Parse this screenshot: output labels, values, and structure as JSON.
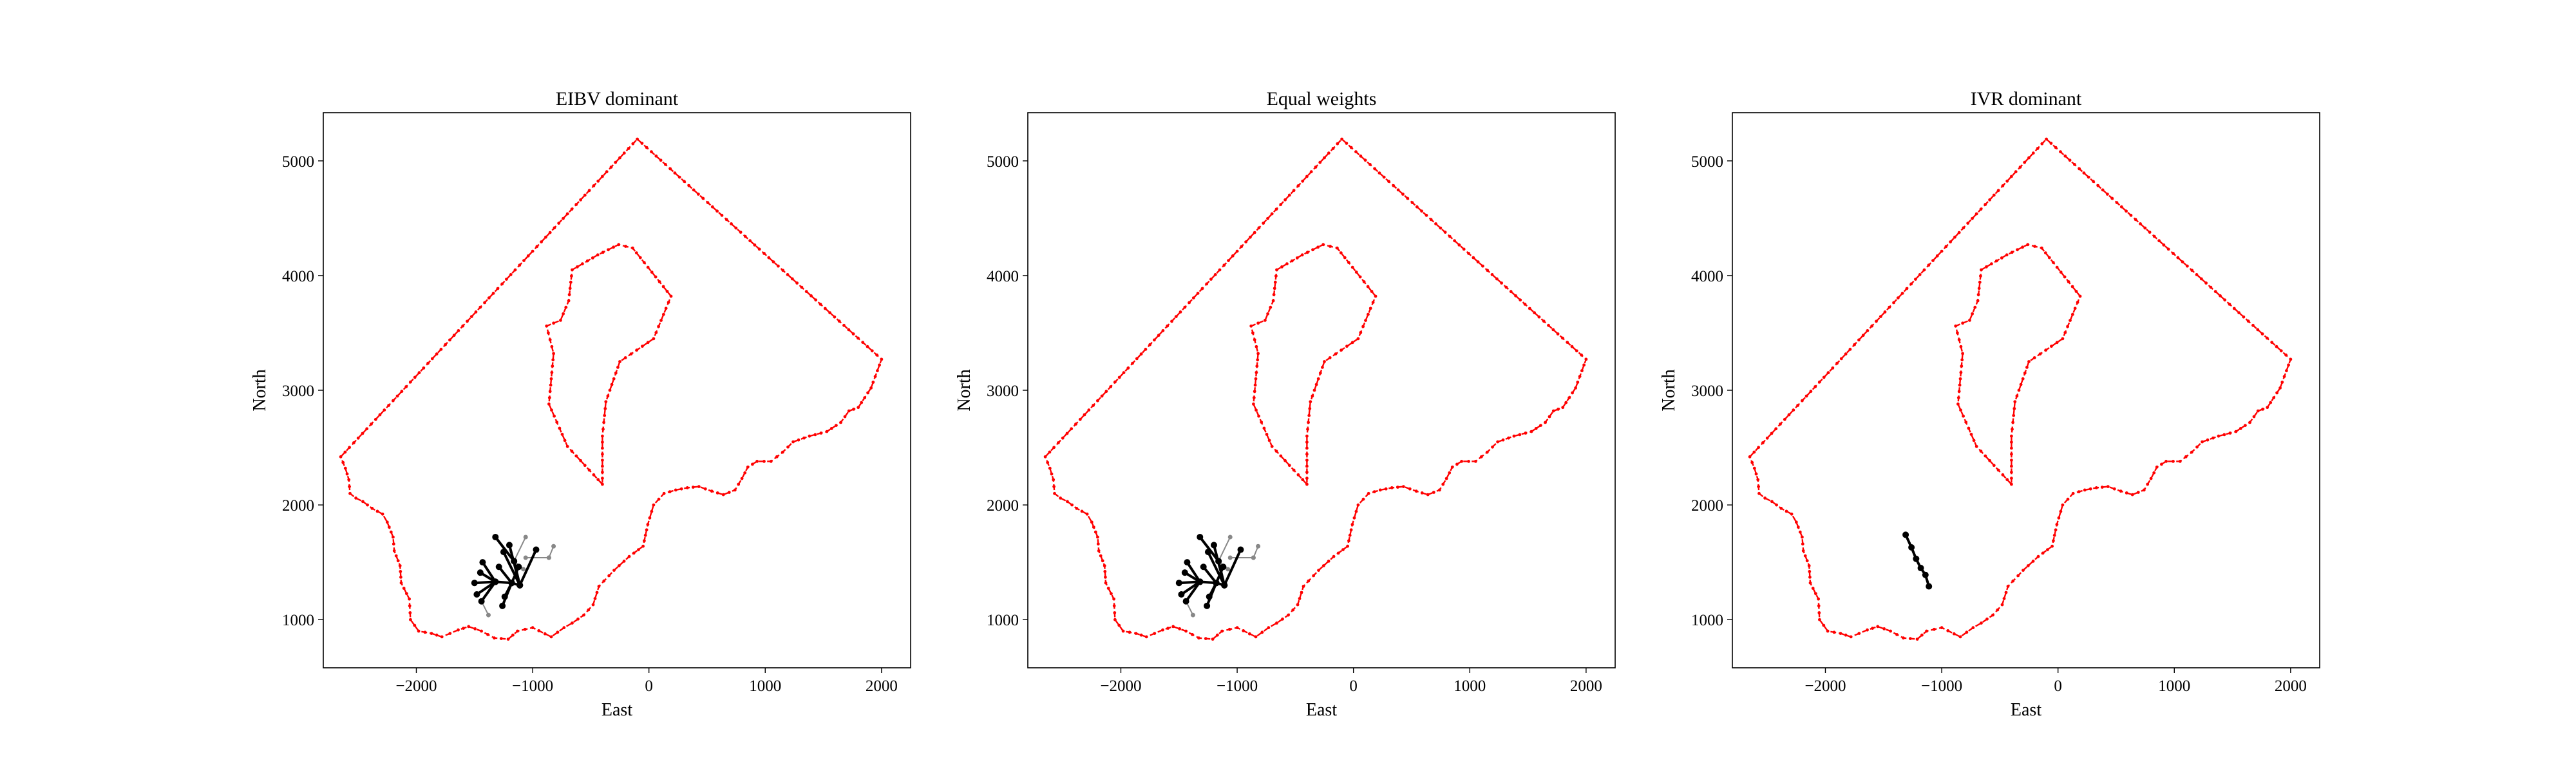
{
  "figure": {
    "background": "#ffffff",
    "boundary_color": "#ff0000",
    "path_color": "#000000",
    "candidate_color": "#888888"
  },
  "chart_data": [
    {
      "type": "line",
      "title": "EIBV dominant",
      "xlabel": "East",
      "ylabel": "North",
      "xlim": [
        -2800,
        2250
      ],
      "ylim": [
        580,
        5420
      ],
      "xticks": [
        -2000,
        -1000,
        0,
        1000,
        2000
      ],
      "xtick_labels": [
        "−2000",
        "−1000",
        "0",
        "1000",
        "2000"
      ],
      "yticks": [
        1000,
        2000,
        3000,
        4000,
        5000
      ],
      "ytick_labels": [
        "1000",
        "2000",
        "3000",
        "4000",
        "5000"
      ],
      "grid": false,
      "path_key": "tree"
    },
    {
      "type": "line",
      "title": "Equal weights",
      "xlabel": "East",
      "ylabel": "North",
      "xlim": [
        -2800,
        2250
      ],
      "ylim": [
        580,
        5420
      ],
      "xticks": [
        -2000,
        -1000,
        0,
        1000,
        2000
      ],
      "xtick_labels": [
        "−2000",
        "−1000",
        "0",
        "1000",
        "2000"
      ],
      "yticks": [
        1000,
        2000,
        3000,
        4000,
        5000
      ],
      "ytick_labels": [
        "1000",
        "2000",
        "3000",
        "4000",
        "5000"
      ],
      "grid": false,
      "path_key": "tree"
    },
    {
      "type": "line",
      "title": "IVR dominant",
      "xlabel": "East",
      "ylabel": "North",
      "xlim": [
        -2800,
        2250
      ],
      "ylim": [
        580,
        5420
      ],
      "xticks": [
        -2000,
        -1000,
        0,
        1000,
        2000
      ],
      "xtick_labels": [
        "−2000",
        "−1000",
        "0",
        "1000",
        "2000"
      ],
      "yticks": [
        1000,
        2000,
        3000,
        4000,
        5000
      ],
      "ytick_labels": [
        "1000",
        "2000",
        "3000",
        "4000",
        "5000"
      ],
      "grid": false,
      "path_key": "line"
    }
  ],
  "shared_geometry": {
    "outer_boundary": [
      [
        -2650,
        2420
      ],
      [
        -100,
        5190
      ],
      [
        2000,
        3270
      ],
      [
        1910,
        3020
      ],
      [
        1800,
        2850
      ],
      [
        1720,
        2820
      ],
      [
        1650,
        2720
      ],
      [
        1530,
        2640
      ],
      [
        1380,
        2600
      ],
      [
        1240,
        2550
      ],
      [
        1150,
        2460
      ],
      [
        1050,
        2380
      ],
      [
        930,
        2380
      ],
      [
        850,
        2330
      ],
      [
        800,
        2230
      ],
      [
        740,
        2130
      ],
      [
        640,
        2090
      ],
      [
        540,
        2120
      ],
      [
        430,
        2160
      ],
      [
        330,
        2150
      ],
      [
        230,
        2130
      ],
      [
        130,
        2100
      ],
      [
        40,
        2000
      ],
      [
        -10,
        1830
      ],
      [
        -50,
        1640
      ],
      [
        -170,
        1550
      ],
      [
        -300,
        1430
      ],
      [
        -430,
        1290
      ],
      [
        -480,
        1130
      ],
      [
        -560,
        1040
      ],
      [
        -660,
        970
      ],
      [
        -730,
        930
      ],
      [
        -840,
        850
      ],
      [
        -1000,
        930
      ],
      [
        -1130,
        900
      ],
      [
        -1210,
        830
      ],
      [
        -1330,
        840
      ],
      [
        -1440,
        900
      ],
      [
        -1550,
        940
      ],
      [
        -1640,
        910
      ],
      [
        -1710,
        880
      ],
      [
        -1780,
        850
      ],
      [
        -1870,
        880
      ],
      [
        -1980,
        900
      ],
      [
        -2050,
        1000
      ],
      [
        -2060,
        1180
      ],
      [
        -2130,
        1320
      ],
      [
        -2140,
        1470
      ],
      [
        -2190,
        1600
      ],
      [
        -2200,
        1720
      ],
      [
        -2250,
        1850
      ],
      [
        -2290,
        1920
      ],
      [
        -2380,
        1970
      ],
      [
        -2460,
        2030
      ],
      [
        -2520,
        2060
      ],
      [
        -2570,
        2100
      ],
      [
        -2580,
        2220
      ],
      [
        -2610,
        2320
      ],
      [
        -2650,
        2420
      ]
    ],
    "island": [
      [
        -400,
        2180
      ],
      [
        -700,
        2510
      ],
      [
        -860,
        2880
      ],
      [
        -820,
        3320
      ],
      [
        -880,
        3560
      ],
      [
        -760,
        3610
      ],
      [
        -690,
        3780
      ],
      [
        -660,
        4050
      ],
      [
        -440,
        4180
      ],
      [
        -260,
        4270
      ],
      [
        -140,
        4240
      ],
      [
        190,
        3820
      ],
      [
        40,
        3450
      ],
      [
        -250,
        3250
      ],
      [
        -370,
        2900
      ],
      [
        -400,
        2600
      ],
      [
        -400,
        2180
      ]
    ],
    "tree_edges": [
      [
        [
          -1500,
          1320
        ],
        [
          -1320,
          1330
        ]
      ],
      [
        [
          -1320,
          1330
        ],
        [
          -1180,
          1320
        ]
      ],
      [
        [
          -1180,
          1320
        ],
        [
          -1110,
          1300
        ]
      ],
      [
        [
          -1110,
          1300
        ],
        [
          -1160,
          1510
        ]
      ],
      [
        [
          -1160,
          1510
        ],
        [
          -1320,
          1720
        ]
      ],
      [
        [
          -1110,
          1300
        ],
        [
          -1250,
          1590
        ]
      ],
      [
        [
          -1110,
          1300
        ],
        [
          -970,
          1610
        ]
      ],
      [
        [
          -1320,
          1330
        ],
        [
          -1430,
          1500
        ]
      ],
      [
        [
          -1320,
          1330
        ],
        [
          -1440,
          1160
        ]
      ],
      [
        [
          -1180,
          1320
        ],
        [
          -1290,
          1460
        ]
      ],
      [
        [
          -1180,
          1320
        ],
        [
          -1240,
          1200
        ]
      ],
      [
        [
          -1180,
          1320
        ],
        [
          -1120,
          1460
        ]
      ],
      [
        [
          -1320,
          1330
        ],
        [
          -1480,
          1220
        ]
      ],
      [
        [
          -1320,
          1330
        ],
        [
          -1450,
          1410
        ]
      ],
      [
        [
          -1180,
          1320
        ],
        [
          -1260,
          1120
        ]
      ],
      [
        [
          -1110,
          1300
        ],
        [
          -1200,
          1650
        ]
      ]
    ],
    "candidate_edges": [
      [
        [
          -1160,
          1510
        ],
        [
          -1060,
          1720
        ]
      ],
      [
        [
          -1160,
          1510
        ],
        [
          -1080,
          1440
        ]
      ],
      [
        [
          -1060,
          1540
        ],
        [
          -860,
          1540
        ]
      ],
      [
        [
          -860,
          1540
        ],
        [
          -820,
          1640
        ]
      ],
      [
        [
          -1440,
          1160
        ],
        [
          -1380,
          1040
        ]
      ]
    ],
    "single_path": [
      [
        -1310,
        1740
      ],
      [
        -1260,
        1630
      ],
      [
        -1220,
        1530
      ],
      [
        -1180,
        1450
      ],
      [
        -1140,
        1390
      ],
      [
        -1110,
        1290
      ]
    ]
  }
}
